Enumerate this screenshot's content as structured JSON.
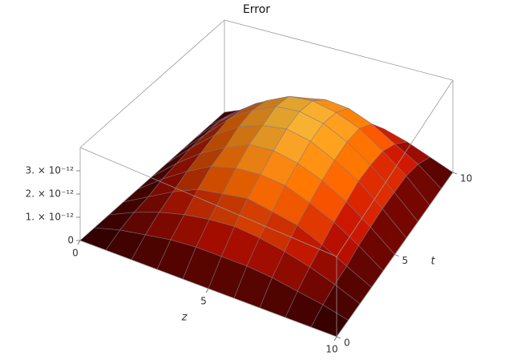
{
  "chart_data": {
    "type": "surface",
    "title": "Error",
    "xlabel": "z",
    "ylabel": "t",
    "x": [
      0,
      1,
      2,
      3,
      4,
      5,
      6,
      7,
      8,
      9,
      10
    ],
    "y": [
      0,
      1,
      2,
      3,
      4,
      5,
      6,
      7,
      8,
      9,
      10
    ],
    "values": [
      [
        0,
        0,
        0,
        0,
        0,
        0,
        0,
        0,
        0,
        0,
        0
      ],
      [
        0,
        3e-13,
        5e-13,
        7e-13,
        8e-13,
        8e-13,
        8e-13,
        7e-13,
        5e-13,
        3e-13,
        0
      ],
      [
        0,
        5e-13,
        9e-13,
        1.2e-12,
        1.4e-12,
        1.5e-12,
        1.4e-12,
        1.2e-12,
        9e-13,
        5e-13,
        0
      ],
      [
        0,
        6e-13,
        1.2e-12,
        1.7e-12,
        1.9e-12,
        2.1e-12,
        1.9e-12,
        1.7e-12,
        1.2e-12,
        6e-13,
        0
      ],
      [
        0,
        8e-13,
        1.5e-12,
        2.1e-12,
        2.4e-12,
        2.5e-12,
        2.4e-12,
        2e-12,
        1.5e-12,
        8e-13,
        0
      ],
      [
        0,
        9e-13,
        1.7e-12,
        2.3e-12,
        2.8e-12,
        2.9e-12,
        2.7e-12,
        2.3e-12,
        1.7e-12,
        9e-13,
        0
      ],
      [
        0,
        1e-12,
        1.9e-12,
        2.6e-12,
        3e-12,
        3.2e-12,
        3e-12,
        2.5e-12,
        1.9e-12,
        1e-12,
        0
      ],
      [
        0,
        1e-12,
        2e-12,
        2.7e-12,
        3.2e-12,
        3.3e-12,
        3.1e-12,
        2.6e-12,
        1.9e-12,
        1e-12,
        0
      ],
      [
        0,
        1e-12,
        1.8e-12,
        2.5e-12,
        3e-12,
        3.1e-12,
        2.9e-12,
        2.5e-12,
        1.8e-12,
        1e-12,
        0
      ],
      [
        0,
        8e-13,
        1.5e-12,
        2e-12,
        2.3e-12,
        2.5e-12,
        2.4e-12,
        2e-12,
        1.4e-12,
        8e-13,
        0
      ],
      [
        0,
        4e-13,
        8e-13,
        1.1e-12,
        1.3e-12,
        1.3e-12,
        1.2e-12,
        1.1e-12,
        8e-13,
        4e-13,
        0
      ]
    ],
    "xlim": [
      0,
      10
    ],
    "ylim": [
      0,
      10
    ],
    "zlim": [
      0,
      4e-12
    ],
    "xticks": [
      0,
      5,
      10
    ],
    "yticks": [
      0,
      5,
      10
    ],
    "zticks": [
      0,
      {
        "value": 1e-12,
        "label": "1. × 10⁻¹²"
      },
      {
        "value": 2e-12,
        "label": "2. × 10⁻¹²"
      },
      {
        "value": 3e-12,
        "label": "3. × 10⁻¹²"
      }
    ],
    "colors": [
      "#2e0000",
      "#a80e00",
      "#f06a00",
      "#e8c040"
    ],
    "mesh": true
  }
}
